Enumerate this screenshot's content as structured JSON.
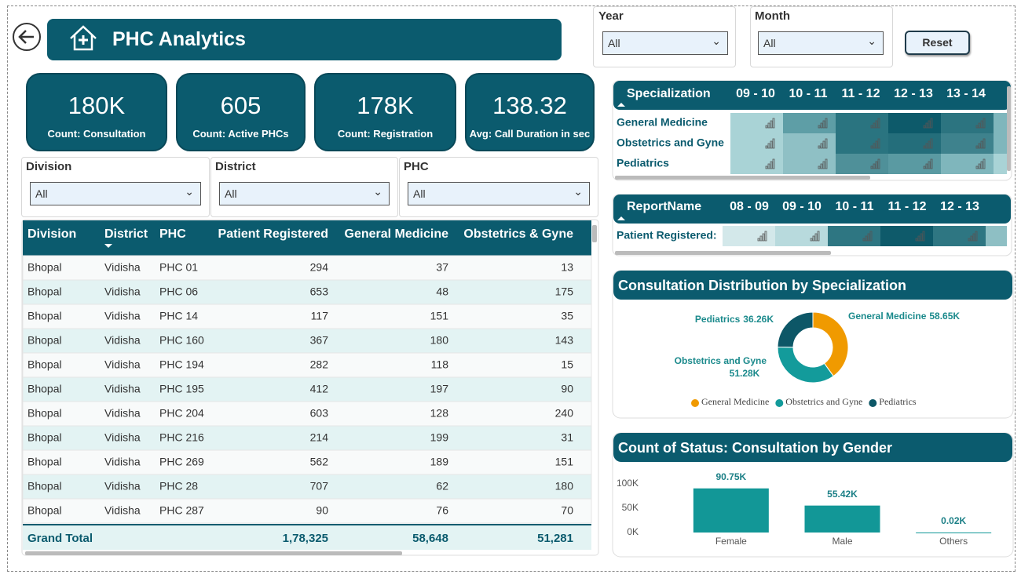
{
  "header": {
    "title": "PHC Analytics"
  },
  "filters": {
    "year": {
      "label": "Year",
      "value": "All"
    },
    "month": {
      "label": "Month",
      "value": "All"
    },
    "reset": "Reset"
  },
  "kpis": [
    {
      "value": "180K",
      "label": "Count: Consultation"
    },
    {
      "value": "605",
      "label": "Count: Active PHCs"
    },
    {
      "value": "178K",
      "label": "Count: Registration"
    },
    {
      "value": "138.32",
      "label": "Avg: Call Duration in sec"
    }
  ],
  "slicers": [
    {
      "label": "Division",
      "value": "All"
    },
    {
      "label": "District",
      "value": "All"
    },
    {
      "label": "PHC",
      "value": "All"
    }
  ],
  "table": {
    "columns": [
      "Division",
      "District",
      "PHC",
      "Patient Registered",
      "General Medicine",
      "Obstetrics & Gyne"
    ],
    "rows": [
      [
        "Bhopal",
        "Vidisha",
        "PHC 01",
        294,
        37,
        13
      ],
      [
        "Bhopal",
        "Vidisha",
        "PHC 06",
        653,
        48,
        175
      ],
      [
        "Bhopal",
        "Vidisha",
        "PHC 14",
        117,
        151,
        35
      ],
      [
        "Bhopal",
        "Vidisha",
        "PHC 160",
        367,
        180,
        143
      ],
      [
        "Bhopal",
        "Vidisha",
        "PHC 194",
        282,
        118,
        15
      ],
      [
        "Bhopal",
        "Vidisha",
        "PHC 195",
        412,
        197,
        90
      ],
      [
        "Bhopal",
        "Vidisha",
        "PHC 204",
        603,
        128,
        240
      ],
      [
        "Bhopal",
        "Vidisha",
        "PHC 216",
        214,
        199,
        31
      ],
      [
        "Bhopal",
        "Vidisha",
        "PHC 269",
        562,
        189,
        151
      ],
      [
        "Bhopal",
        "Vidisha",
        "PHC 28",
        707,
        62,
        180
      ],
      [
        "Bhopal",
        "Vidisha",
        "PHC 287",
        90,
        76,
        70
      ]
    ],
    "total": {
      "label": "Grand Total",
      "values": [
        "1,78,325",
        "58,648",
        "51,281"
      ]
    }
  },
  "matrices": [
    {
      "header": "Specialization",
      "columns": [
        "09 - 10",
        "10 - 11",
        "11 - 12",
        "12 - 13",
        "13 - 14"
      ],
      "rows": [
        "General Medicine",
        "Obstetrics and Gyne",
        "Pediatrics"
      ]
    },
    {
      "header": "ReportName",
      "columns": [
        "08 - 09",
        "09 - 10",
        "10 - 11",
        "11 - 12",
        "12 - 13"
      ],
      "rows": [
        "Patient Registered:"
      ]
    }
  ],
  "chart_data": [
    {
      "type": "pie",
      "title": "Consultation Distribution by Specialization",
      "categories": [
        "General Medicine",
        "Obstetrics and Gyne",
        "Pediatrics"
      ],
      "values": [
        58650,
        51280,
        36260
      ],
      "value_labels": [
        "58.65K",
        "51.28K",
        "36.26K"
      ],
      "colors": [
        "#f09a00",
        "#139b9b",
        "#0d5767"
      ],
      "donut": true
    },
    {
      "type": "bar",
      "title": "Count of Status: Consultation by Gender",
      "categories": [
        "Female",
        "Male",
        "Others"
      ],
      "values": [
        90750,
        55420,
        20
      ],
      "value_labels": [
        "90.75K",
        "55.42K",
        "0.02K"
      ],
      "color": "#129797",
      "ylim": [
        0,
        100000
      ],
      "yticks": [
        {
          "value": 0,
          "label": "0K"
        },
        {
          "value": 50000,
          "label": "50K"
        },
        {
          "value": 100000,
          "label": "100K"
        }
      ]
    }
  ]
}
